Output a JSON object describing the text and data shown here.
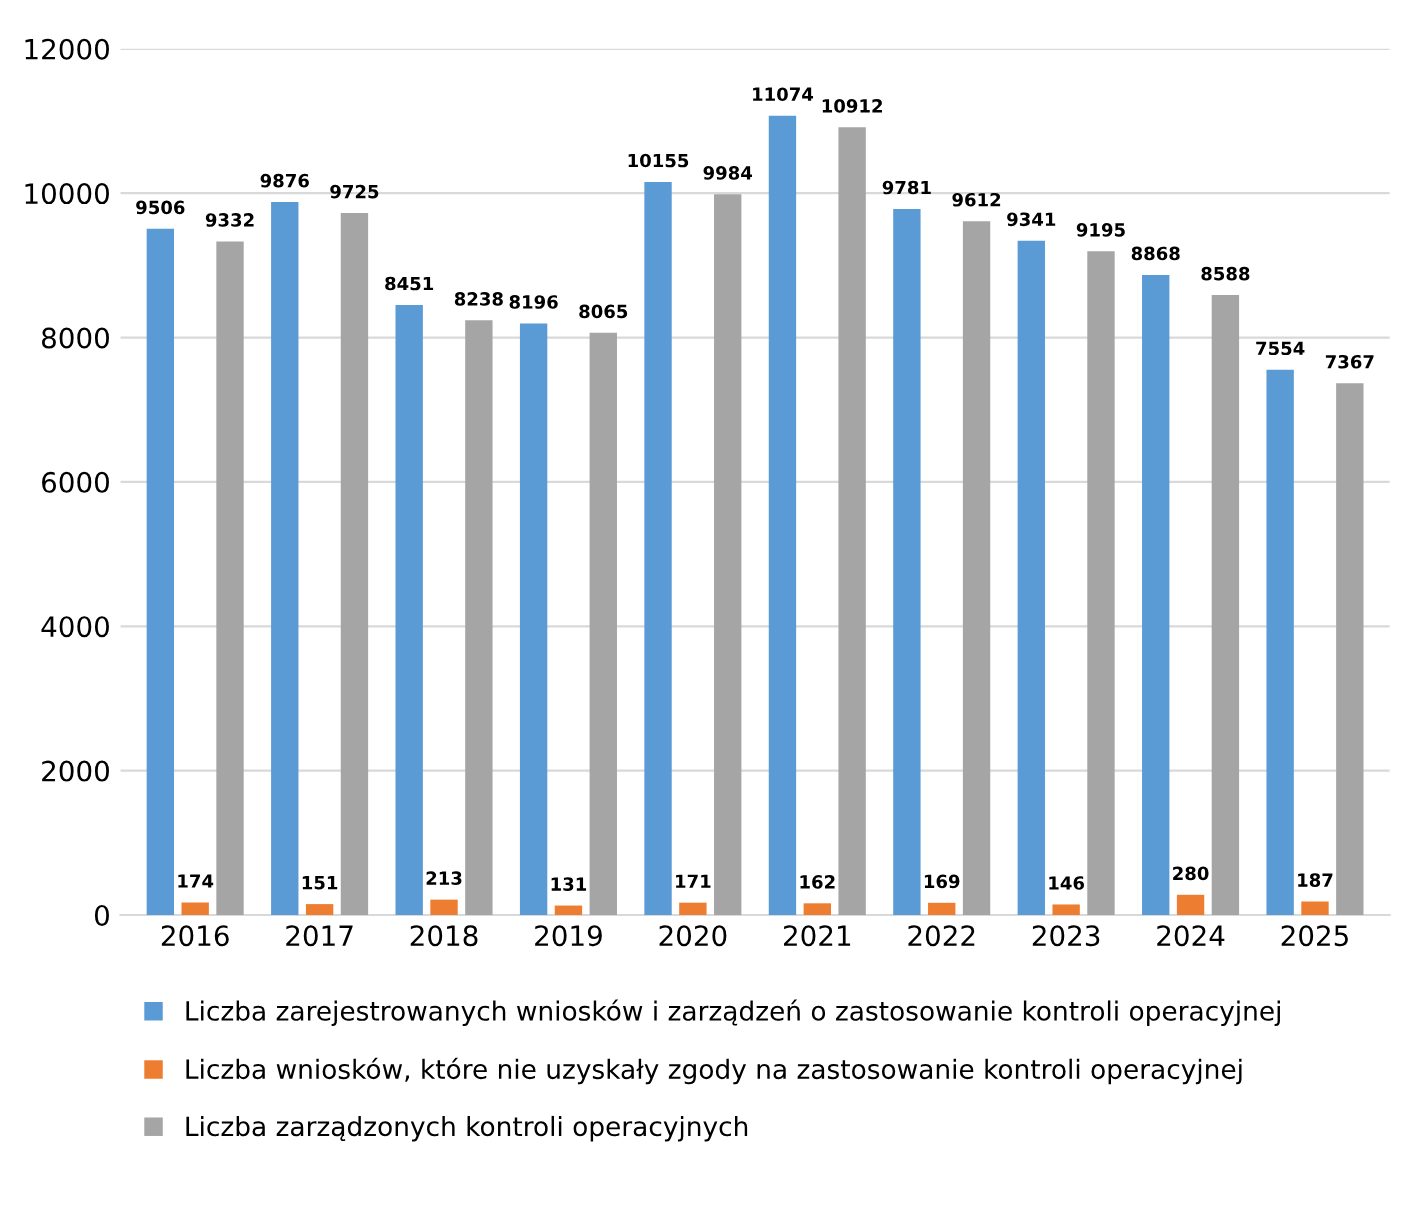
{
  "chart_data": {
    "type": "bar",
    "categories": [
      "2016",
      "2017",
      "2018",
      "2019",
      "2020",
      "2021",
      "2022",
      "2023",
      "2024",
      "2025"
    ],
    "series": [
      {
        "name": "Liczba zarejestrowanych wniosków i zarządzeń o zastosowanie kontroli operacyjnej",
        "color": "#5b9bd5",
        "values": [
          9506,
          9876,
          8451,
          8196,
          10155,
          11074,
          9781,
          9341,
          8868,
          7554
        ]
      },
      {
        "name": "Liczba wniosków, które nie uzyskały zgody na zastosowanie kontroli operacyjnej",
        "color": "#ed7d31",
        "values": [
          174,
          151,
          213,
          131,
          171,
          162,
          169,
          146,
          280,
          187
        ]
      },
      {
        "name": "Liczba zarządzonych kontroli operacyjnych",
        "color": "#a5a5a5",
        "values": [
          9332,
          9725,
          8238,
          8065,
          9984,
          10912,
          9612,
          9195,
          8588,
          7367
        ]
      }
    ],
    "ylim": [
      0,
      12000
    ],
    "yticks": [
      0,
      2000,
      4000,
      6000,
      8000,
      10000,
      12000
    ],
    "grid": "y",
    "legend": "bottom",
    "data_labels": true
  }
}
